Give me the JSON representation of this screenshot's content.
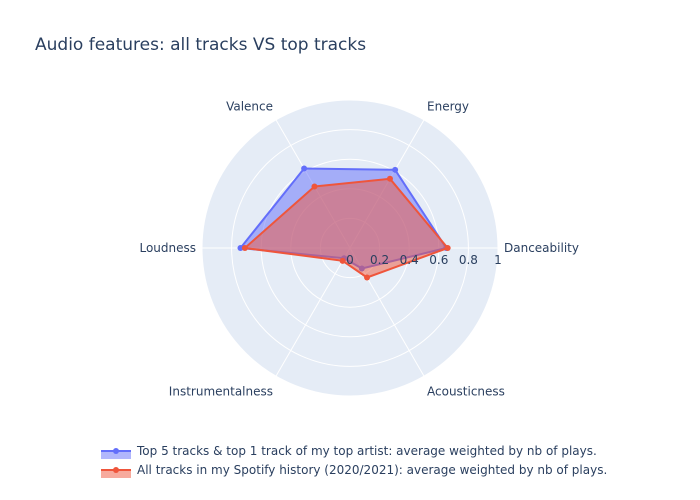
{
  "chart_data": {
    "type": "radar",
    "title": "Audio features: all tracks VS top tracks",
    "categories": [
      "Danceability",
      "Energy",
      "Valence",
      "Loudness",
      "Instrumentalness",
      "Acousticness"
    ],
    "radial_range": [
      0,
      1
    ],
    "radial_ticks": [
      "0",
      "0.2",
      "0.4",
      "0.6",
      "0.8",
      "1"
    ],
    "radial_tick_values": [
      0,
      0.2,
      0.4,
      0.6,
      0.8,
      1
    ],
    "grid": true,
    "legend_position": "bottom",
    "series": [
      {
        "name": "Top 5 tracks & top 1 track of my top artist: average weighted by nb of plays.",
        "values": [
          0.65,
          0.61,
          0.62,
          0.74,
          0.08,
          0.16
        ],
        "color": "#636efa"
      },
      {
        "name": "All tracks in my Spotify history (2020/2021): average weighted by nb of plays.",
        "values": [
          0.66,
          0.54,
          0.48,
          0.71,
          0.1,
          0.23
        ],
        "color": "#ef553b"
      }
    ]
  },
  "colors": {
    "polar_bg": "#e5ecf6",
    "grid": "#ffffff",
    "text": "#2a3f5f"
  }
}
